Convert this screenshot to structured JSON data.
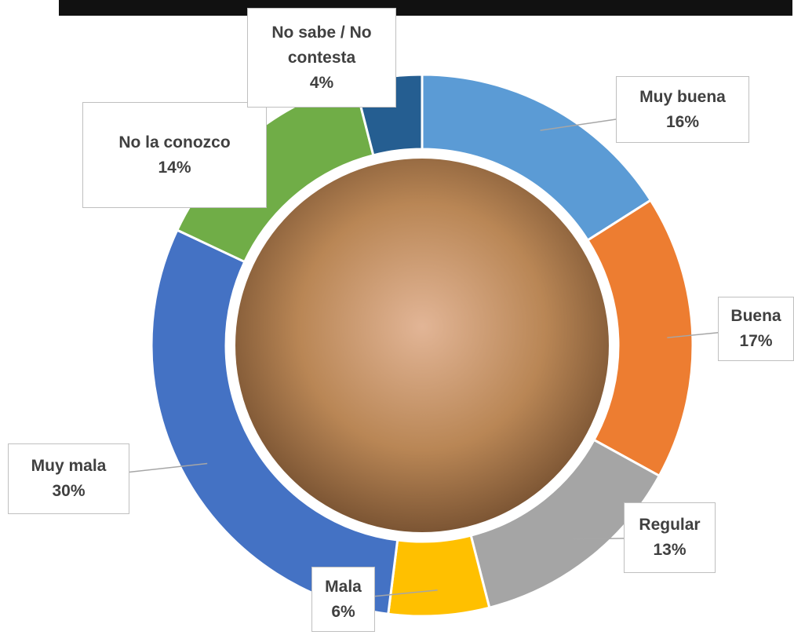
{
  "chart_data": {
    "type": "donut",
    "categories": [
      "Muy buena",
      "Buena",
      "Regular",
      "Mala",
      "Muy mala",
      "No la conozco",
      "No sabe / No contesta"
    ],
    "values": [
      16,
      17,
      13,
      6,
      30,
      14,
      4
    ],
    "value_labels": [
      "16%",
      "17%",
      "13%",
      "6%",
      "30%",
      "14%",
      "4%"
    ],
    "colors": [
      "#5b9bd5",
      "#ed7d31",
      "#a5a5a5",
      "#ffc000",
      "#4472c4",
      "#70ad47",
      "#255e91"
    ]
  }
}
